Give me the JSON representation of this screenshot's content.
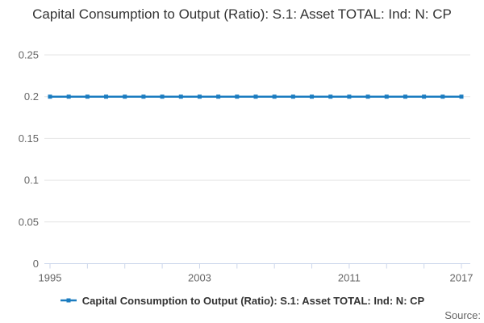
{
  "source_label": "Source:",
  "colors": {
    "series": "#1b7cc0",
    "grid": "#e6e6e6",
    "axis": "#ccd6eb",
    "title_text": "#333333",
    "muted_text": "#666666"
  },
  "legend": {
    "position": "bottom"
  },
  "chart_data": {
    "type": "line",
    "title": "Capital Consumption to Output (Ratio): S.1: Asset TOTAL: Ind: N: CP",
    "xlabel": "",
    "ylabel": "",
    "x": [
      1995,
      1996,
      1997,
      1998,
      1999,
      2000,
      2001,
      2002,
      2003,
      2004,
      2005,
      2006,
      2007,
      2008,
      2009,
      2010,
      2011,
      2012,
      2013,
      2014,
      2015,
      2016,
      2017
    ],
    "series": [
      {
        "name": "Capital Consumption to Output (Ratio): S.1: Asset TOTAL: Ind: N: CP",
        "values": [
          0.2,
          0.2,
          0.2,
          0.2,
          0.2,
          0.2,
          0.2,
          0.2,
          0.2,
          0.2,
          0.2,
          0.2,
          0.2,
          0.2,
          0.2,
          0.2,
          0.2,
          0.2,
          0.2,
          0.2,
          0.2,
          0.2,
          0.2
        ]
      }
    ],
    "xlim": [
      1995,
      2017
    ],
    "ylim": [
      0,
      0.25
    ],
    "y_ticks": [
      0,
      0.05,
      0.1,
      0.15,
      0.2,
      0.25
    ],
    "y_tick_labels": [
      "0",
      "0.05",
      "0.1",
      "0.15",
      "0.2",
      "0.25"
    ],
    "x_tick_step": 2,
    "x_labeled_ticks": [
      1995,
      2003,
      2011,
      2017
    ],
    "grid": "horizontal",
    "legend_position": "bottom",
    "marker": "square"
  }
}
